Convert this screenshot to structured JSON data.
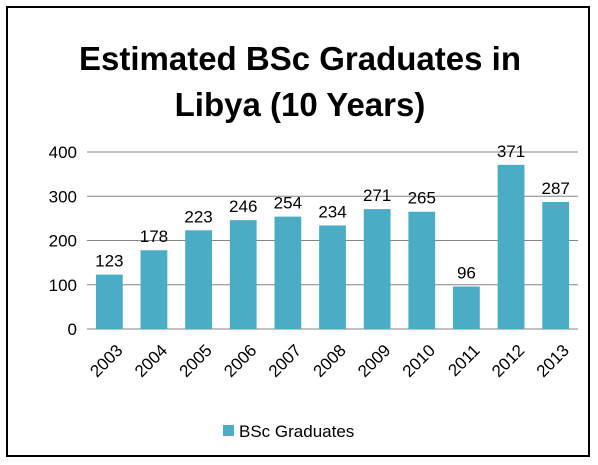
{
  "chart_data": {
    "type": "bar",
    "title_lines": [
      "Estimated BSc Graduates in",
      "Libya (10 Years)"
    ],
    "categories": [
      "2003",
      "2004",
      "2005",
      "2006",
      "2007",
      "2008",
      "2009",
      "2010",
      "2011",
      "2012",
      "2013"
    ],
    "series": [
      {
        "name": "BSc Graduates",
        "values": [
          123,
          178,
          223,
          246,
          254,
          234,
          271,
          265,
          96,
          371,
          287
        ],
        "color": "#4BACC6"
      }
    ],
    "y_ticks": [
      "0",
      "100",
      "200",
      "300",
      "400"
    ],
    "ylim": [
      0,
      400
    ],
    "grid": true,
    "gridline_color": "#868686",
    "legend_position": "bottom"
  }
}
